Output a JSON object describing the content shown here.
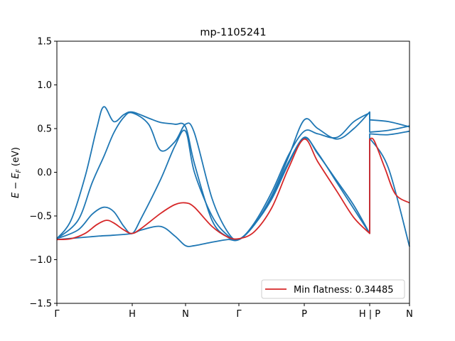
{
  "chart_data": {
    "type": "line",
    "title": "mp-1105241",
    "ylabel": "E − E_F (eV)",
    "xlabel": "",
    "ylim": [
      -1.5,
      1.5
    ],
    "xlim": [
      0,
      1
    ],
    "y_ticks": [
      -1.5,
      -1.0,
      -0.5,
      0.0,
      0.5,
      1.0,
      1.5
    ],
    "y_tick_labels": [
      "−1.5",
      "−1.0",
      "−0.5",
      "0.0",
      "0.5",
      "1.0",
      "1.5"
    ],
    "k_points": [
      {
        "label": "Γ",
        "x": 0.0
      },
      {
        "label": "H",
        "x": 0.2137
      },
      {
        "label": "N",
        "x": 0.3649
      },
      {
        "label": "Γ",
        "x": 0.5161
      },
      {
        "label": "P",
        "x": 0.7016
      },
      {
        "label": "H | P",
        "x": 0.8871
      },
      {
        "label": "N",
        "x": 1.0
      }
    ],
    "grid": false,
    "legend": {
      "position": "lower-right",
      "entries": [
        {
          "label": "Min flatness: 0.34485",
          "color": "#d62728"
        }
      ]
    },
    "colors": {
      "bands": "#1f77b4",
      "highlight": "#d62728"
    },
    "series": [
      {
        "color": "#1f77b4",
        "x": [
          0,
          0.06,
          0.12,
          0.1613,
          0.2137,
          0.24,
          0.2944,
          0.3347,
          0.3649,
          0.39,
          0.44,
          0.4838,
          0.5161,
          0.56,
          0.6102,
          0.6573,
          0.7016,
          0.74,
          0.7944,
          0.8423,
          0.8871,
          0.8871,
          0.94,
          1.0
        ],
        "y": [
          -0.77,
          -0.75,
          -0.73,
          -0.72,
          -0.7,
          -0.66,
          -0.62,
          -0.73,
          -0.84,
          -0.84,
          -0.8,
          -0.77,
          -0.77,
          -0.6,
          -0.3,
          0.1,
          0.4,
          0.21,
          -0.1,
          -0.38,
          -0.7,
          0.39,
          0.05,
          -0.85
        ]
      },
      {
        "color": "#1f77b4",
        "x": [
          0,
          0.06,
          0.1,
          0.1331,
          0.1613,
          0.19,
          0.2137,
          0.24,
          0.2944,
          0.3347,
          0.3649,
          0.39,
          0.44,
          0.4838,
          0.5161,
          0.56,
          0.6102,
          0.6573,
          0.7016,
          0.74,
          0.7944,
          0.8423,
          0.8871,
          0.8871,
          0.94,
          1.0
        ],
        "y": [
          -0.76,
          -0.66,
          -0.48,
          -0.4,
          -0.45,
          -0.62,
          -0.7,
          -0.52,
          -0.08,
          0.3,
          0.47,
          0.0,
          -0.5,
          -0.72,
          -0.77,
          -0.6,
          -0.28,
          0.12,
          0.39,
          0.22,
          -0.12,
          -0.42,
          -0.7,
          0.44,
          0.43,
          0.47
        ]
      },
      {
        "color": "#1f77b4",
        "x": [
          0,
          0.06,
          0.1,
          0.1331,
          0.1613,
          0.19,
          0.2137,
          0.26,
          0.2944,
          0.3347,
          0.3649,
          0.39,
          0.44,
          0.4838,
          0.5161,
          0.56,
          0.6102,
          0.6573,
          0.7016,
          0.74,
          0.7944,
          0.8423,
          0.8871,
          0.8871,
          0.94,
          1.0
        ],
        "y": [
          -0.76,
          -0.55,
          -0.12,
          0.18,
          0.45,
          0.63,
          0.68,
          0.55,
          0.25,
          0.35,
          0.55,
          0.45,
          -0.3,
          -0.68,
          -0.77,
          -0.58,
          -0.22,
          0.2,
          0.47,
          0.44,
          0.4,
          0.58,
          0.68,
          0.6,
          0.58,
          0.52
        ]
      },
      {
        "color": "#1f77b4",
        "x": [
          0,
          0.04,
          0.08,
          0.1129,
          0.1331,
          0.1613,
          0.19,
          0.2137,
          0.26,
          0.2944,
          0.3347,
          0.3649,
          0.39,
          0.44,
          0.4838,
          0.5161,
          0.56,
          0.6102,
          0.6573,
          0.7016,
          0.74,
          0.7944,
          0.8423,
          0.8871,
          0.8871,
          0.94,
          1.0
        ],
        "y": [
          -0.76,
          -0.55,
          -0.05,
          0.5,
          0.75,
          0.58,
          0.66,
          0.69,
          0.62,
          0.57,
          0.55,
          0.52,
          0.1,
          -0.55,
          -0.74,
          -0.77,
          -0.6,
          -0.26,
          0.18,
          0.6,
          0.5,
          0.38,
          0.5,
          0.69,
          0.46,
          0.48,
          0.53
        ]
      },
      {
        "color": "#d62728",
        "x": [
          0,
          0.04,
          0.08,
          0.1129,
          0.14,
          0.1613,
          0.19,
          0.2137,
          0.24,
          0.2944,
          0.3347,
          0.3649,
          0.39,
          0.44,
          0.4838,
          0.5161,
          0.56,
          0.6102,
          0.6573,
          0.7016,
          0.74,
          0.7944,
          0.8423,
          0.8871,
          0.8871,
          0.9,
          0.93,
          0.96,
          1.0
        ],
        "y": [
          -0.77,
          -0.76,
          -0.7,
          -0.6,
          -0.55,
          -0.58,
          -0.66,
          -0.7,
          -0.64,
          -0.47,
          -0.37,
          -0.35,
          -0.4,
          -0.62,
          -0.74,
          -0.76,
          -0.68,
          -0.4,
          0.05,
          0.38,
          0.12,
          -0.22,
          -0.52,
          -0.7,
          0.38,
          0.36,
          0.05,
          -0.25,
          -0.35
        ]
      }
    ]
  }
}
